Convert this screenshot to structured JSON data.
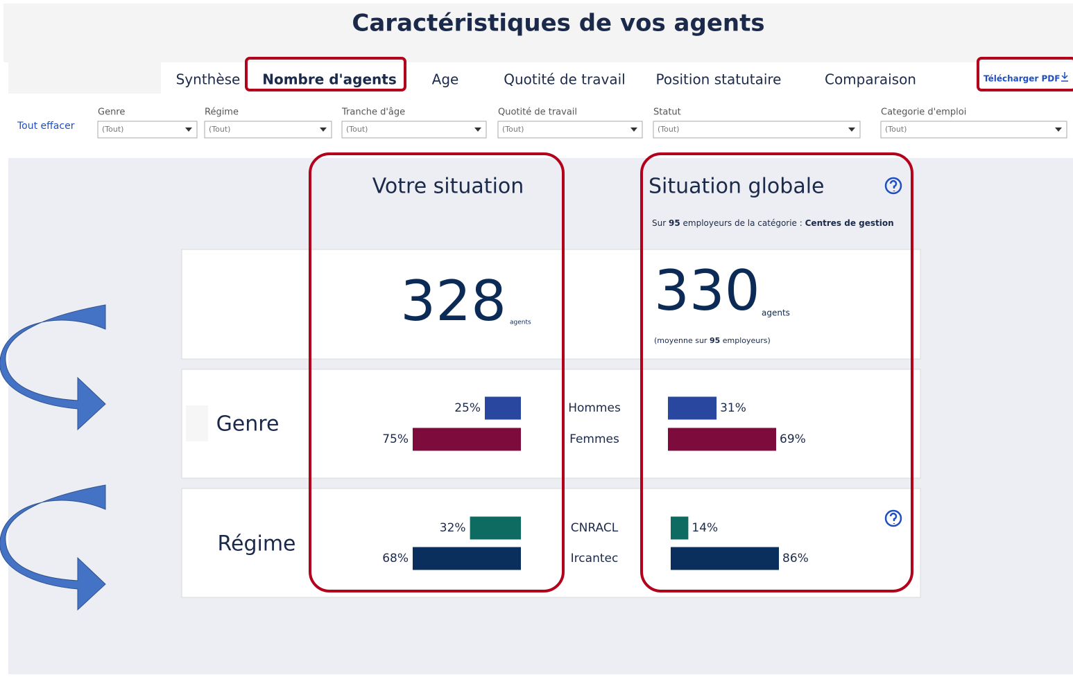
{
  "header": {
    "title": "Caractéristiques de vos agents"
  },
  "tabs": {
    "items": [
      "Synthèse",
      "Nombre d'agents",
      "Age",
      "Quotité de travail",
      "Position statutaire",
      "Comparaison"
    ],
    "active": 1,
    "download": "Télécharger PDF"
  },
  "filters": {
    "clear": "Tout effacer",
    "items": [
      {
        "label": "Genre",
        "value": "(Tout)"
      },
      {
        "label": "Régime",
        "value": "(Tout)"
      },
      {
        "label": "Tranche d'âge",
        "value": "(Tout)"
      },
      {
        "label": "Quotité de travail",
        "value": "(Tout)"
      },
      {
        "label": "Statut",
        "value": "(Tout)"
      },
      {
        "label": "Categorie d'emploi",
        "value": "(Tout)"
      }
    ]
  },
  "votre": {
    "title": "Votre situation",
    "count": 328,
    "unit": "agents"
  },
  "globale": {
    "title": "Situation globale",
    "note": {
      "prefix": "Sur",
      "count": 95,
      "middle": "employeurs de la catégorie :",
      "category": "Centres de gestion"
    },
    "count": 330,
    "unit": "agents",
    "average": {
      "prefix": "(moyenne sur",
      "count": 95,
      "suffix": "employeurs)"
    }
  },
  "sections": [
    {
      "label": "Genre",
      "categories": [
        "Hommes",
        "Femmes"
      ],
      "colors": [
        "#2a479f",
        "#7d0c3c"
      ],
      "votre": {
        "values": [
          25,
          75
        ],
        "value_labels": [
          "25%",
          "75%"
        ]
      },
      "globale": {
        "values": [
          31,
          69
        ],
        "value_labels": [
          "31%",
          "69%"
        ]
      }
    },
    {
      "label": "Régime",
      "categories": [
        "CNRACL",
        "Ircantec"
      ],
      "colors": [
        "#0e6b62",
        "#0b2f5c"
      ],
      "votre": {
        "values": [
          32,
          68
        ],
        "value_labels": [
          "32%",
          "68%"
        ]
      },
      "globale": {
        "values": [
          14,
          86
        ],
        "value_labels": [
          "14%",
          "86%"
        ]
      }
    }
  ]
}
